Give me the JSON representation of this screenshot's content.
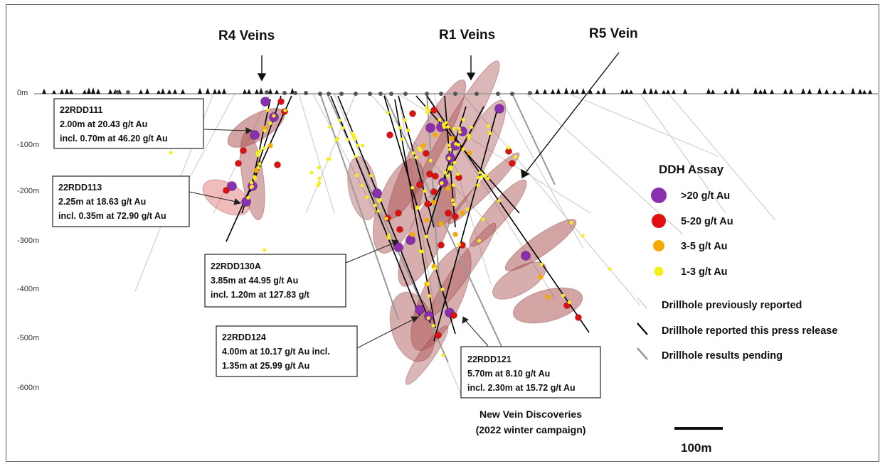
{
  "vein_labels": {
    "r4": "R4 Veins",
    "r1": "R1 Veins",
    "r5": "R5 Vein"
  },
  "depth_ticks": [
    "0m",
    "-100m",
    "-200m",
    "-300m",
    "-400m",
    "-500m",
    "-600m"
  ],
  "callouts": [
    {
      "id": "22rdd111",
      "lines": [
        "22RDD111",
        "2.00m at 20.43 g/t Au",
        "incl. 0.70m at 46.20 g/t Au"
      ]
    },
    {
      "id": "22rdd113",
      "lines": [
        "22RDD113",
        "2.25m at 18.63 g/t Au",
        "incl. 0.35m at 72.90 g/t Au"
      ]
    },
    {
      "id": "22rdd130a",
      "lines": [
        "22RDD130A",
        "3.85m at 44.95 g/t Au",
        "incl. 1.20m at 127.83 g/t"
      ]
    },
    {
      "id": "22rdd124",
      "lines": [
        "22RDD124",
        "4.00m at 10.17 g/t Au incl.",
        "1.35m at 25.99 g/t Au"
      ]
    },
    {
      "id": "22rdd121",
      "lines": [
        "22RDD121",
        "5.70m at 8.10 g/t Au",
        "incl. 2.30m at 15.72 g/t Au"
      ]
    }
  ],
  "legend": {
    "title": "DDH Assay",
    "assay_classes": [
      {
        "label": ">20 g/t Au",
        "color": "#8a2fb0"
      },
      {
        "label": "5-20 g/t Au",
        "color": "#e01010"
      },
      {
        "label": "3-5 g/t Au",
        "color": "#f5a800"
      },
      {
        "label": "1-3 g/t Au",
        "color": "#f6ee18"
      }
    ],
    "drillholes": [
      {
        "label": "Drillhole previously reported",
        "color": "#cfcfcf"
      },
      {
        "label": "Drillhole reported this press release",
        "color": "#000000"
      },
      {
        "label": "Drillhole results pending",
        "color": "#9a9a9a"
      }
    ]
  },
  "note": {
    "line1": "New Vein Discoveries",
    "line2": "(2022 winter campaign)"
  },
  "scale_bar": {
    "label": "100m"
  },
  "colors": {
    "vein_fill": "#a84a4a",
    "vein_fill_light": "#e06a6a",
    "collar": "#555555",
    "tree": "#111111",
    "ground": "#999999"
  }
}
